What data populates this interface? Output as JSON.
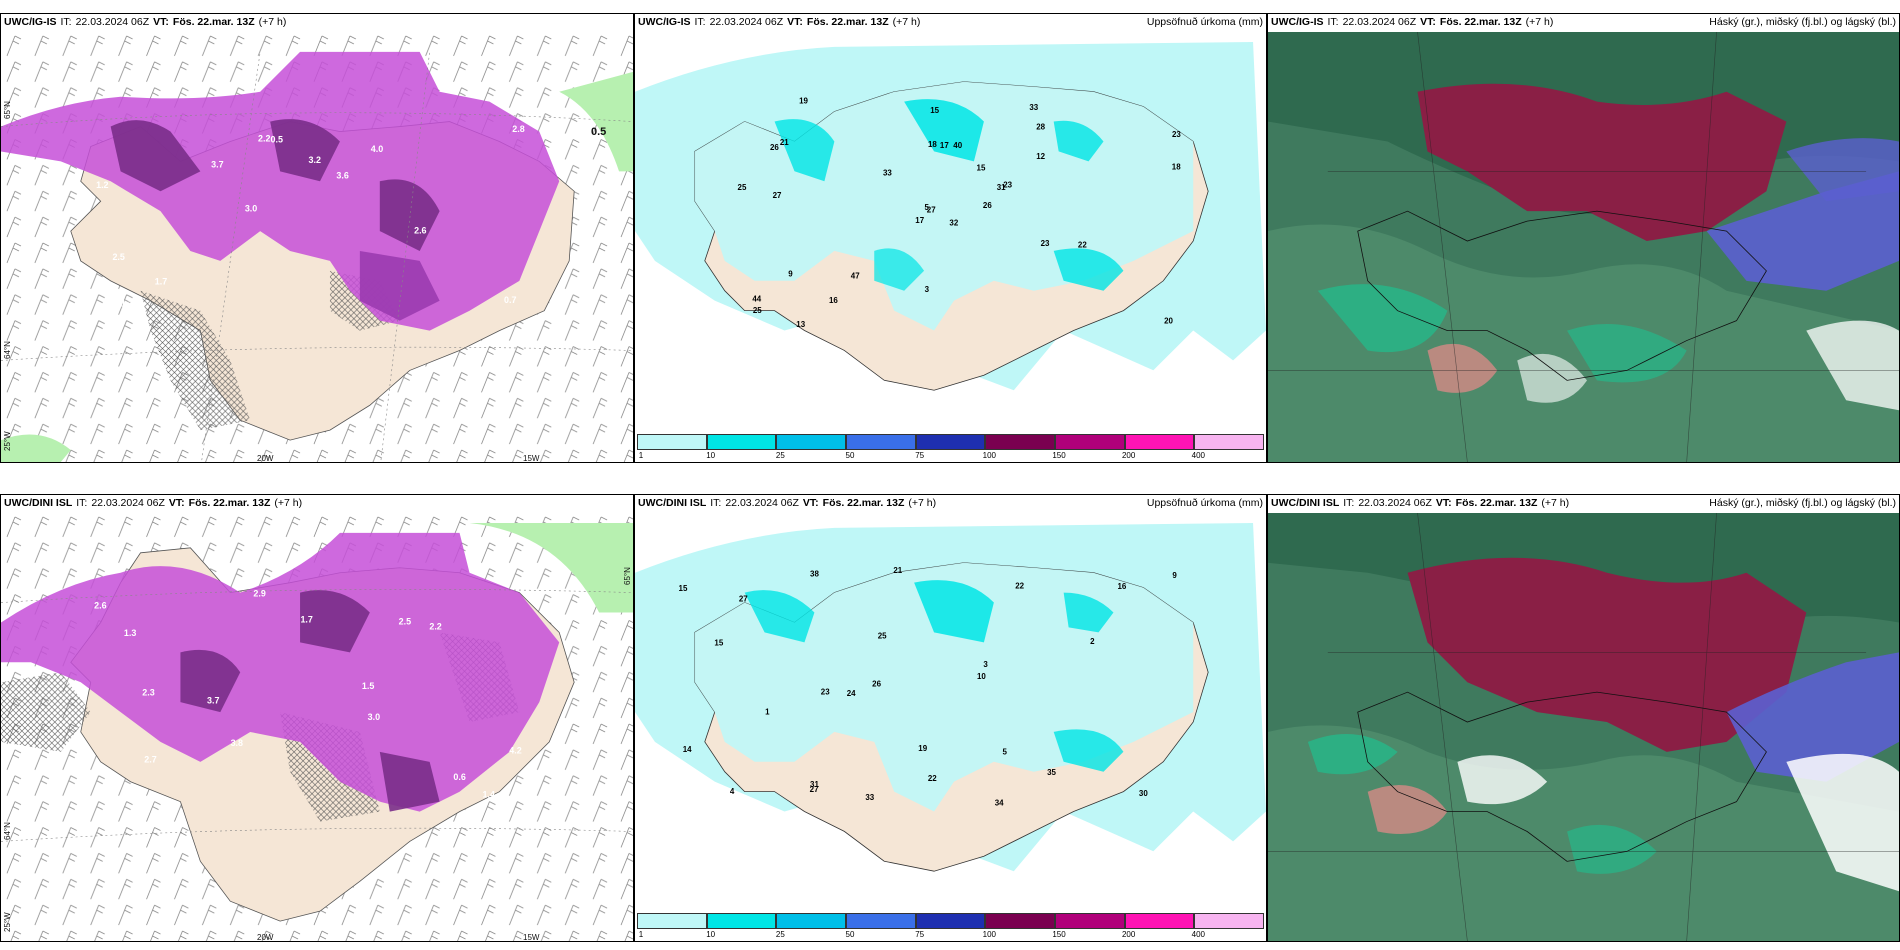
{
  "rows": [
    {
      "model": "UWC/IG-IS",
      "it_label": "IT:",
      "it_value": "22.03.2024 06Z",
      "vt_label": "VT:",
      "vt_value": "Fös. 22.mar. 13Z",
      "lead": "(+7 h)"
    },
    {
      "model": "UWC/DINI ISL",
      "it_label": "IT:",
      "it_value": "22.03.2024 06Z",
      "vt_label": "VT:",
      "vt_value": "Fös. 22.mar. 13Z",
      "lead": "(+7 h)"
    }
  ],
  "panel_titles": {
    "precip": "Uppsöfnuð úrkoma (mm)",
    "clouds": "Háský (gr.), miðský (fj.bl.) og lágský (bl.)"
  },
  "legend": {
    "labels": [
      "1",
      "10",
      "25",
      "50",
      "75",
      "100",
      "150",
      "200",
      "400"
    ],
    "colors": [
      "#bff7f7",
      "#00e5e5",
      "#00bfe8",
      "#3a6fe8",
      "#1e2fb0",
      "#7a0050",
      "#b0007a",
      "#ff14b4",
      "#f7b4f0"
    ]
  },
  "axis_labels": {
    "lat_top": "65°N",
    "lat_mid": "64°N",
    "lon_left": "25°W",
    "lon_20": "20W",
    "lon_15": "15W",
    "contour_value": "0.5"
  },
  "precip_values_top": [
    "32",
    "26",
    "27",
    "44",
    "31",
    "47",
    "33",
    "40",
    "28",
    "26",
    "19",
    "20",
    "27",
    "23",
    "17",
    "12",
    "13",
    "18",
    "15",
    "9",
    "33",
    "25",
    "16",
    "17",
    "23",
    "22",
    "21",
    "15",
    "25",
    "23",
    "18",
    "5",
    "3"
  ],
  "precip_values_bottom": [
    "33",
    "34",
    "31",
    "35",
    "38",
    "27",
    "23",
    "30",
    "21",
    "25",
    "16",
    "22",
    "26",
    "19",
    "22",
    "10",
    "15",
    "27",
    "24",
    "15",
    "5",
    "9",
    "3",
    "4",
    "2",
    "1",
    "14"
  ],
  "ice_values_top": [
    "0.7",
    "1.2",
    "2.8",
    "3.0",
    "4.0",
    "1.3",
    "2.2",
    "3.2",
    "2.5",
    "3.7",
    "2.9",
    "1.7",
    "0.5",
    "3.6",
    "2.6"
  ],
  "ice_values_bottom": [
    "1.4",
    "2.3",
    "3.0",
    "2.6",
    "4.2",
    "1.3",
    "2.7",
    "3.7",
    "2.2",
    "1.7",
    "2.5",
    "0.6",
    "3.8",
    "2.9",
    "1.5"
  ],
  "colors": {
    "land": "#f5e6d6",
    "precip_light": "#bff7f7",
    "precip_mid": "#00e5e5",
    "ice_magenta": "#c64fd8",
    "ice_dark": "#7a2d8a",
    "green_light": "#b7f0b0",
    "cloud_maroon": "#8a1f45",
    "cloud_green": "#3f7a5e",
    "cloud_teal": "#1fbf8f",
    "cloud_blue": "#5b5fd0"
  }
}
